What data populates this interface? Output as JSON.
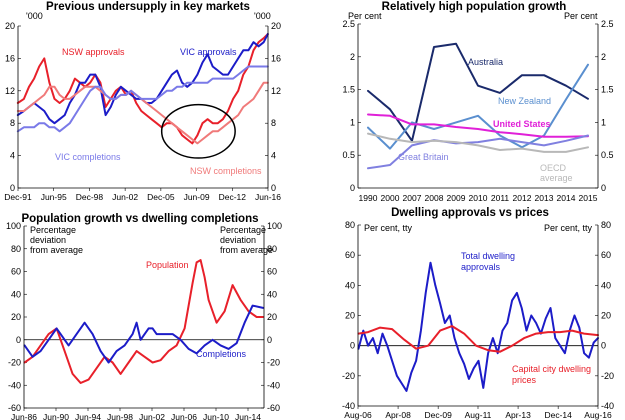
{
  "chart_data": [
    {
      "type": "line",
      "title": "Previous undersupply in key markets",
      "unit_left": "'000",
      "unit_right": "'000",
      "ylim": [
        0,
        20
      ],
      "yticks": [
        0,
        4,
        8,
        12,
        16,
        20
      ],
      "xlim": [
        1991.92,
        2016.42
      ],
      "xticks": [
        {
          "label": "Dec-91",
          "x": 1991.92
        },
        {
          "label": "Jun-95",
          "x": 1995.42
        },
        {
          "label": "Dec-98",
          "x": 1998.92
        },
        {
          "label": "Jun-02",
          "x": 2002.42
        },
        {
          "label": "Dec-05",
          "x": 2005.92
        },
        {
          "label": "Jun-09",
          "x": 2009.42
        },
        {
          "label": "Dec-12",
          "x": 2012.92
        },
        {
          "label": "Jun-16",
          "x": 2016.42
        }
      ],
      "annotation_ellipse": {
        "cx": 2009.6,
        "cy": 7.0,
        "rx": 3.6,
        "ry": 3.3
      },
      "series": [
        {
          "name": "NSW approvals",
          "color": "#e8202a",
          "x": [
            1991.9,
            1992.5,
            1993,
            1993.5,
            1994,
            1994.5,
            1995,
            1995.5,
            1996,
            1996.5,
            1997,
            1997.5,
            1998,
            1998.5,
            1999,
            1999.5,
            2000,
            2000.5,
            2001,
            2001.5,
            2002,
            2002.5,
            2003,
            2003.5,
            2004,
            2004.5,
            2005,
            2005.5,
            2006,
            2006.5,
            2007,
            2007.5,
            2008,
            2008.5,
            2009,
            2009.5,
            2010,
            2010.5,
            2011,
            2011.5,
            2012,
            2012.5,
            2013,
            2013.5,
            2014,
            2014.5,
            2015,
            2015.5,
            2016,
            2016.4
          ],
          "y": [
            10.5,
            11,
            12.5,
            13.5,
            15,
            16,
            13,
            11,
            10.5,
            11,
            12,
            13.5,
            13,
            12.5,
            13,
            14,
            13,
            10,
            11,
            12,
            12.5,
            11.5,
            12,
            10.5,
            9.5,
            9,
            8.5,
            8,
            7.5,
            8,
            8,
            7.5,
            6.5,
            6,
            5.5,
            6.5,
            8,
            8.5,
            8,
            8,
            8.5,
            9.5,
            11,
            12,
            14,
            15,
            17,
            18,
            18.5,
            19
          ]
        },
        {
          "name": "VIC approvals",
          "color": "#1c1cc8",
          "x": [
            1991.9,
            1992.5,
            1993,
            1993.5,
            1994,
            1994.5,
            1995,
            1995.5,
            1996,
            1996.5,
            1997,
            1997.5,
            1998,
            1998.5,
            1999,
            1999.5,
            2000,
            2000.5,
            2001,
            2001.5,
            2002,
            2002.5,
            2003,
            2003.5,
            2004,
            2004.5,
            2005,
            2005.5,
            2006,
            2006.5,
            2007,
            2007.5,
            2008,
            2008.5,
            2009,
            2009.5,
            2010,
            2010.5,
            2011,
            2011.5,
            2012,
            2012.5,
            2013,
            2013.5,
            2014,
            2014.5,
            2015,
            2015.5,
            2016,
            2016.4
          ],
          "y": [
            9,
            9.5,
            10,
            10.5,
            10,
            9.5,
            8.5,
            8,
            8.5,
            9,
            10.5,
            11.5,
            13,
            13,
            14,
            14,
            12.5,
            9,
            10,
            11.5,
            12.5,
            12,
            11.5,
            11,
            11,
            10.5,
            10.5,
            11,
            12,
            13,
            14,
            14.5,
            13,
            12.5,
            13,
            14,
            15.5,
            16.5,
            15,
            14.5,
            14,
            14,
            15,
            16,
            17,
            17,
            18,
            17.5,
            18,
            19
          ]
        },
        {
          "name": "NSW completions",
          "color": "#f07a7a",
          "x": [
            1991.9,
            1992.5,
            1993,
            1993.5,
            1994,
            1994.5,
            1995,
            1995.5,
            1996,
            1996.5,
            1997,
            1997.5,
            1998,
            1998.5,
            1999,
            1999.5,
            2000,
            2000.5,
            2001,
            2001.5,
            2002,
            2002.5,
            2003,
            2003.5,
            2004,
            2004.5,
            2005,
            2005.5,
            2006,
            2006.5,
            2007,
            2007.5,
            2008,
            2008.5,
            2009,
            2009.5,
            2010,
            2010.5,
            2011,
            2011.5,
            2012,
            2012.5,
            2013,
            2013.5,
            2014,
            2014.5,
            2015,
            2015.5,
            2016,
            2016.4
          ],
          "y": [
            9.5,
            9.5,
            10,
            10.5,
            11,
            11.5,
            12.5,
            12.5,
            11.5,
            11,
            11,
            11.5,
            12,
            12.5,
            12.5,
            12.5,
            12,
            11.5,
            11,
            11,
            11.5,
            11.5,
            12,
            11.5,
            11,
            10.5,
            10,
            9.5,
            9,
            8.5,
            8,
            7.5,
            7,
            6.5,
            6,
            5.5,
            6,
            6.5,
            7,
            7,
            7.5,
            8,
            8.5,
            9,
            10,
            10.5,
            11,
            12,
            13,
            13
          ]
        },
        {
          "name": "VIC completions",
          "color": "#7a7ae8",
          "x": [
            1991.9,
            1992.5,
            1993,
            1993.5,
            1994,
            1994.5,
            1995,
            1995.5,
            1996,
            1996.5,
            1997,
            1997.5,
            1998,
            1998.5,
            1999,
            1999.5,
            2000,
            2000.5,
            2001,
            2001.5,
            2002,
            2002.5,
            2003,
            2003.5,
            2004,
            2004.5,
            2005,
            2005.5,
            2006,
            2006.5,
            2007,
            2007.5,
            2008,
            2008.5,
            2009,
            2009.5,
            2010,
            2010.5,
            2011,
            2011.5,
            2012,
            2012.5,
            2013,
            2013.5,
            2014,
            2014.5,
            2015,
            2015.5,
            2016,
            2016.4
          ],
          "y": [
            7,
            7.5,
            7.5,
            7.5,
            8,
            8,
            7.5,
            7.5,
            7,
            7.5,
            8,
            9,
            10,
            11,
            12,
            12.5,
            12.5,
            11.5,
            11,
            11,
            11.5,
            11.5,
            12,
            11.5,
            11,
            11,
            11,
            11,
            11.5,
            12,
            12,
            12.5,
            12.5,
            13,
            13,
            13,
            13,
            13,
            13.5,
            13.5,
            13.5,
            13.5,
            13.5,
            14,
            14.5,
            15,
            15,
            15,
            15,
            15
          ]
        }
      ],
      "labels": [
        {
          "text": "NSW approvals",
          "color": "#e8202a"
        },
        {
          "text": "VIC approvals",
          "color": "#1c1cc8"
        },
        {
          "text": "VIC completions",
          "color": "#7a7ae8"
        },
        {
          "text": "NSW completions",
          "color": "#f07a7a"
        }
      ]
    },
    {
      "type": "line",
      "title": "Relatively high population growth",
      "unit_left": "Per cent",
      "unit_right": "Per cent",
      "ylim": [
        0,
        2.5
      ],
      "yticks": [
        0,
        0.5,
        1,
        1.5,
        2,
        2.5
      ],
      "categories": [
        "1990",
        "2000",
        "2007",
        "2008",
        "2009",
        "2010",
        "2011",
        "2012",
        "2013",
        "2014",
        "2015"
      ],
      "series": [
        {
          "name": "Australia",
          "color": "#1a2a6b",
          "values": [
            1.48,
            1.2,
            0.72,
            2.15,
            2.2,
            1.56,
            1.45,
            1.72,
            1.72,
            1.56,
            1.36
          ]
        },
        {
          "name": "New Zealand",
          "color": "#5a8fcf",
          "values": [
            0.92,
            0.6,
            1.0,
            0.9,
            1.0,
            1.1,
            0.8,
            0.62,
            0.8,
            1.35,
            1.88
          ]
        },
        {
          "name": "United States",
          "color": "#e020d8",
          "values": [
            1.12,
            1.1,
            0.97,
            0.97,
            0.93,
            0.9,
            0.85,
            0.82,
            0.78,
            0.78,
            0.79
          ]
        },
        {
          "name": "Great Britain",
          "color": "#8080e0",
          "values": [
            0.3,
            0.35,
            0.65,
            0.73,
            0.68,
            0.7,
            0.75,
            0.7,
            0.65,
            0.72,
            0.8
          ]
        },
        {
          "name": "OECD average",
          "color": "#b8b8b8",
          "values": [
            0.83,
            0.75,
            0.7,
            0.72,
            0.7,
            0.65,
            0.58,
            0.6,
            0.55,
            0.55,
            0.62
          ]
        }
      ],
      "labels": [
        {
          "text": "Australia",
          "color": "#1a2a6b"
        },
        {
          "text": "New Zealand",
          "color": "#5a8fcf"
        },
        {
          "text": "United States",
          "color": "#e020d8"
        },
        {
          "text": "Great Britain",
          "color": "#8080e0"
        },
        {
          "text": "OECD",
          "color": "#b8b8b8"
        },
        {
          "text": "average",
          "color": "#b8b8b8"
        }
      ]
    },
    {
      "type": "line",
      "title": "Population growth vs dwelling completions",
      "unit_left": "Percentage\ndeviation\nfrom average",
      "unit_right": "Percentage\ndeviation\nfrom average",
      "ylim": [
        -60,
        100
      ],
      "yticks": [
        -60,
        -40,
        -20,
        0,
        20,
        40,
        60,
        80,
        100
      ],
      "xlim": [
        1986.42,
        2016.42
      ],
      "xticks": [
        {
          "label": "Jun-86",
          "x": 1986.42
        },
        {
          "label": "Jun-90",
          "x": 1990.42
        },
        {
          "label": "Jun-94",
          "x": 1994.42
        },
        {
          "label": "Jun-98",
          "x": 1998.42
        },
        {
          "label": "Jun-02",
          "x": 2002.42
        },
        {
          "label": "Jun-06",
          "x": 2006.42
        },
        {
          "label": "Jun-10",
          "x": 2010.42
        },
        {
          "label": "Jun-14",
          "x": 2014.42
        }
      ],
      "series": [
        {
          "name": "Population",
          "color": "#e8202a",
          "x": [
            1986.5,
            1987.5,
            1988.5,
            1989.5,
            1990.5,
            1991.5,
            1992.5,
            1993.5,
            1994.5,
            1995.5,
            1996.5,
            1997.5,
            1998.5,
            1999.5,
            2000.5,
            2001.5,
            2002.5,
            2003.5,
            2004.5,
            2005.5,
            2006.5,
            2007.5,
            2008,
            2008.5,
            2009,
            2009.5,
            2010.5,
            2011.5,
            2012.5,
            2013.5,
            2014.5,
            2015.5,
            2016.3
          ],
          "y": [
            -20,
            -15,
            -5,
            5,
            10,
            -10,
            -30,
            -38,
            -35,
            -25,
            -15,
            -20,
            -30,
            -20,
            -10,
            -15,
            -20,
            -18,
            -10,
            -5,
            10,
            50,
            68,
            70,
            55,
            35,
            15,
            25,
            48,
            35,
            25,
            20,
            20
          ]
        },
        {
          "name": "Completions",
          "color": "#1c1cc8",
          "x": [
            1986.5,
            1987.5,
            1988.5,
            1989.5,
            1990.5,
            1991,
            1992,
            1993,
            1994,
            1995,
            1996,
            1997,
            1998,
            1999,
            2000,
            2000.5,
            2001,
            2002,
            2002.5,
            2003,
            2004,
            2005,
            2006,
            2007,
            2008,
            2009,
            2010,
            2011,
            2012,
            2013,
            2014,
            2015,
            2016.3
          ],
          "y": [
            -5,
            -15,
            -10,
            0,
            10,
            5,
            -5,
            5,
            15,
            5,
            -10,
            -20,
            -10,
            -5,
            5,
            15,
            0,
            10,
            10,
            5,
            5,
            5,
            0,
            -8,
            -12,
            -5,
            0,
            -5,
            -8,
            -3,
            15,
            30,
            28
          ]
        }
      ],
      "labels": [
        {
          "text": "Population",
          "color": "#e8202a"
        },
        {
          "text": "Completions",
          "color": "#1c1cc8"
        }
      ]
    },
    {
      "type": "line",
      "title": "Dwelling approvals vs prices",
      "unit_left": "Per cent, tty",
      "unit_right": "Per cent, tty",
      "ylim": [
        -40,
        80
      ],
      "yticks": [
        -40,
        -20,
        0,
        20,
        40,
        60,
        80
      ],
      "xlim": [
        2006.58,
        2016.58
      ],
      "xticks": [
        {
          "label": "Aug-06",
          "x": 2006.58
        },
        {
          "label": "Apr-08",
          "x": 2008.25
        },
        {
          "label": "Dec-09",
          "x": 2009.92
        },
        {
          "label": "Aug-11",
          "x": 2011.58
        },
        {
          "label": "Apr-13",
          "x": 2013.25
        },
        {
          "label": "Dec-14",
          "x": 2014.92
        },
        {
          "label": "Aug-16",
          "x": 2016.58
        }
      ],
      "series": [
        {
          "name": "Total dwelling approvals",
          "color": "#1c1cc8",
          "x": [
            2006.6,
            2006.8,
            2007,
            2007.2,
            2007.4,
            2007.6,
            2007.8,
            2008,
            2008.2,
            2008.4,
            2008.6,
            2008.8,
            2009,
            2009.2,
            2009.4,
            2009.6,
            2009.8,
            2010,
            2010.2,
            2010.4,
            2010.6,
            2010.8,
            2011,
            2011.2,
            2011.4,
            2011.6,
            2011.8,
            2012,
            2012.2,
            2012.4,
            2012.6,
            2012.8,
            2013,
            2013.2,
            2013.4,
            2013.6,
            2013.8,
            2014,
            2014.2,
            2014.4,
            2014.6,
            2014.8,
            2015,
            2015.2,
            2015.4,
            2015.6,
            2015.8,
            2016,
            2016.2,
            2016.4,
            2016.58
          ],
          "y": [
            -2,
            10,
            0,
            5,
            -5,
            8,
            0,
            -10,
            -20,
            -25,
            -30,
            -18,
            -10,
            10,
            35,
            55,
            40,
            28,
            15,
            20,
            5,
            -5,
            -12,
            -22,
            -15,
            -10,
            -28,
            -5,
            5,
            -5,
            10,
            15,
            30,
            35,
            25,
            10,
            20,
            15,
            8,
            18,
            25,
            5,
            0,
            -5,
            10,
            20,
            12,
            -5,
            -8,
            2,
            5
          ]
        },
        {
          "name": "Capital city dwelling prices",
          "color": "#e8202a",
          "x": [
            2006.6,
            2007,
            2007.5,
            2008,
            2008.5,
            2009,
            2009.5,
            2010,
            2010.5,
            2011,
            2011.5,
            2012,
            2012.5,
            2013,
            2013.5,
            2014,
            2014.5,
            2015,
            2015.5,
            2016,
            2016.58
          ],
          "y": [
            8,
            9,
            12,
            11,
            4,
            -2,
            0,
            10,
            13,
            8,
            0,
            -3,
            -4,
            0,
            5,
            8,
            9,
            9,
            10,
            8,
            7
          ]
        }
      ],
      "labels": [
        {
          "text": "Total dwelling",
          "color": "#1c1cc8"
        },
        {
          "text": "approvals",
          "color": "#1c1cc8"
        },
        {
          "text": "Capital city dwelling",
          "color": "#e8202a"
        },
        {
          "text": "prices",
          "color": "#e8202a"
        }
      ]
    }
  ]
}
